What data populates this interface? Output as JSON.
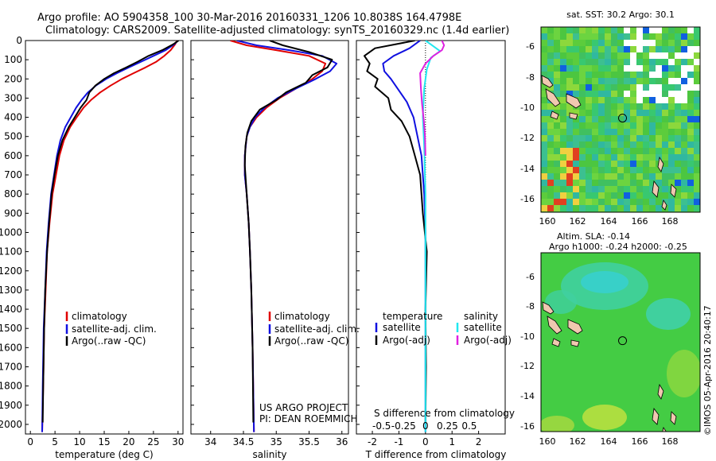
{
  "header": {
    "title_line1": "Argo profile: AO 5904358_100 30-Mar-2016 20160331_1206 10.8038S 164.4798E",
    "title_line2": "Climatology: CARS2009. Satellite-adjusted climatology: synTS_20160329.nc (1.4d earlier)"
  },
  "colors": {
    "climatology": "#e00000",
    "satellite": "#1010e0",
    "argo": "#000000",
    "sat_salinity": "#20e8f0",
    "argo_salinity": "#e020e0"
  },
  "chart_data": [
    {
      "id": "temperature_profile",
      "type": "line",
      "xlabel": "temperature (deg C)",
      "ylabel": "",
      "xlim": [
        -1,
        31
      ],
      "ylim": [
        0,
        2050
      ],
      "y_inverted": true,
      "xticks": [
        0,
        5,
        10,
        15,
        20,
        25,
        30
      ],
      "yticks": [
        0,
        100,
        200,
        300,
        400,
        500,
        600,
        700,
        800,
        900,
        1000,
        1100,
        1200,
        1300,
        1400,
        1500,
        1600,
        1700,
        1800,
        1900,
        2000
      ],
      "legend": {
        "position": "lower-center",
        "entries": [
          "climatology",
          "satellite-adj. clim.",
          "Argo(..raw -QC)"
        ]
      },
      "series": [
        {
          "name": "climatology",
          "color": "#e00000",
          "x": [
            29.8,
            29.4,
            28.5,
            27.2,
            25.6,
            23.4,
            21.0,
            18.6,
            16.3,
            14.2,
            12.3,
            10.8,
            9.4,
            8.1,
            6.8,
            5.9,
            5.2,
            4.5,
            3.9,
            3.4,
            3.1,
            2.8,
            2.6,
            2.4
          ],
          "y": [
            0,
            20,
            50,
            80,
            110,
            140,
            170,
            200,
            235,
            270,
            310,
            350,
            400,
            450,
            520,
            600,
            700,
            800,
            950,
            1100,
            1300,
            1500,
            1800,
            2040
          ]
        },
        {
          "name": "satellite-adj. clim.",
          "color": "#1010e0",
          "x": [
            30.0,
            29.2,
            27.5,
            25.0,
            22.5,
            20.0,
            17.6,
            15.4,
            13.3,
            11.7,
            10.4,
            9.3,
            8.2,
            7.1,
            6.1,
            5.4,
            4.8,
            4.2,
            3.7,
            3.3,
            3.0,
            2.7,
            2.5,
            2.4
          ],
          "y": [
            0,
            20,
            50,
            80,
            110,
            140,
            170,
            200,
            235,
            270,
            310,
            350,
            400,
            450,
            520,
            600,
            700,
            800,
            950,
            1100,
            1300,
            1500,
            1800,
            2040
          ]
        },
        {
          "name": "Argo(..raw -QC)",
          "color": "#000000",
          "x": [
            30.1,
            29.0,
            26.8,
            24.0,
            21.8,
            19.5,
            17.0,
            15.0,
            13.2,
            12.0,
            11.4,
            10.2,
            9.0,
            7.8,
            6.5,
            5.6,
            4.9,
            4.3,
            3.8,
            3.4,
            3.0,
            2.8,
            2.6,
            2.5
          ],
          "y": [
            0,
            20,
            50,
            80,
            110,
            140,
            170,
            200,
            235,
            270,
            310,
            350,
            400,
            450,
            520,
            600,
            700,
            800,
            950,
            1100,
            1300,
            1500,
            1800,
            1990
          ]
        }
      ]
    },
    {
      "id": "salinity_profile",
      "type": "line",
      "xlabel": "salinity",
      "xlim": [
        33.7,
        36.1
      ],
      "ylim": [
        0,
        2050
      ],
      "y_inverted": true,
      "xticks": [
        34,
        34.5,
        35,
        35.5,
        36
      ],
      "legend": {
        "position": "lower-center",
        "entries": [
          "climatology",
          "satellite-adj. clim.",
          "Argo(..raw -QC)"
        ]
      },
      "annotations": [
        "US ARGO PROJECT",
        "PI: DEAN ROEMMICH"
      ],
      "series": [
        {
          "name": "climatology",
          "color": "#e00000",
          "x": [
            34.3,
            34.55,
            35.0,
            35.5,
            35.75,
            35.7,
            35.55,
            35.3,
            35.05,
            34.85,
            34.7,
            34.6,
            34.55,
            34.52,
            34.52,
            34.55,
            34.58,
            34.6,
            34.62,
            34.64,
            34.66
          ],
          "y": [
            0,
            25,
            50,
            80,
            120,
            160,
            200,
            250,
            300,
            350,
            400,
            450,
            500,
            600,
            700,
            800,
            950,
            1100,
            1300,
            1600,
            2040
          ]
        },
        {
          "name": "satellite-adj. clim.",
          "color": "#1010e0",
          "x": [
            34.4,
            34.7,
            35.2,
            35.7,
            35.92,
            35.82,
            35.6,
            35.3,
            35.02,
            34.82,
            34.68,
            34.6,
            34.55,
            34.52,
            34.52,
            34.55,
            34.58,
            34.6,
            34.62,
            34.64,
            34.66
          ],
          "y": [
            0,
            25,
            50,
            80,
            120,
            160,
            200,
            250,
            300,
            350,
            400,
            450,
            500,
            600,
            700,
            800,
            950,
            1100,
            1300,
            1600,
            2040
          ]
        },
        {
          "name": "Argo(..raw -QC)",
          "color": "#000000",
          "x": [
            34.9,
            35.1,
            35.5,
            35.85,
            35.78,
            35.55,
            35.45,
            35.15,
            35.0,
            34.75,
            34.62,
            34.56,
            34.53,
            34.52,
            34.55,
            34.58,
            34.6,
            34.62,
            34.64,
            34.65
          ],
          "y": [
            0,
            25,
            60,
            100,
            140,
            180,
            220,
            270,
            310,
            360,
            420,
            480,
            550,
            650,
            800,
            950,
            1100,
            1300,
            1600,
            1990
          ]
        }
      ]
    },
    {
      "id": "difference_profile",
      "type": "line",
      "xlabel": "T difference from climatology",
      "xlabel2": "S difference from climatology",
      "xlim": [
        -2.6,
        3.0
      ],
      "ylim": [
        0,
        2050
      ],
      "y_inverted": true,
      "xticks": [
        -2,
        -1,
        0,
        1,
        2
      ],
      "xticks2": [
        -0.5,
        -0.25,
        0,
        0.25,
        0.5
      ],
      "xtick2_labels": [
        "-0.5",
        "-0.25",
        "0",
        "0.25",
        "0.5"
      ],
      "legend": {
        "position": "lower",
        "headers": [
          "temperature",
          "salinity"
        ],
        "entries": [
          "satellite",
          "Argo(-adj)",
          "satellite",
          "Argo(-adj)"
        ]
      },
      "series": [
        {
          "name": "temperature satellite",
          "color": "#1010e0",
          "x": [
            -0.2,
            -0.6,
            -1.2,
            -1.6,
            -1.55,
            -1.3,
            -1.0,
            -0.7,
            -0.45,
            -0.3,
            -0.15,
            -0.1,
            -0.05,
            0,
            0,
            0
          ],
          "y": [
            0,
            40,
            80,
            120,
            160,
            200,
            260,
            320,
            400,
            500,
            600,
            700,
            800,
            1000,
            1500,
            2040
          ]
        },
        {
          "name": "temperature Argo(-adj)",
          "color": "#000000",
          "x": [
            -0.4,
            -1.9,
            -2.3,
            -2.1,
            -2.2,
            -1.8,
            -1.9,
            -1.4,
            -1.3,
            -0.9,
            -0.6,
            -0.4,
            -0.2,
            -0.1,
            0.05,
            0,
            0.02,
            0
          ],
          "y": [
            0,
            40,
            80,
            120,
            160,
            200,
            240,
            300,
            360,
            420,
            500,
            600,
            700,
            900,
            1100,
            1400,
            1700,
            1990
          ]
        },
        {
          "name": "salinity satellite",
          "color": "#20e8f0",
          "x": [
            0.0,
            0.2,
            0.55,
            0.2,
            0.05,
            -0.05,
            -0.1,
            -0.05,
            0,
            0
          ],
          "y": [
            0,
            20,
            55,
            90,
            150,
            250,
            400,
            550,
            800,
            2040
          ]
        },
        {
          "name": "salinity Argo(-adj)",
          "color": "#e020e0",
          "x": [
            0.62,
            0.7,
            0.62,
            0.3,
            0.0,
            -0.2,
            -0.17,
            -0.13,
            -0.06,
            -0.02,
            0
          ],
          "y": [
            0,
            25,
            50,
            80,
            120,
            170,
            250,
            330,
            420,
            500,
            600
          ]
        }
      ]
    }
  ],
  "maps": {
    "sst": {
      "title": "sat. SST: 30.2  Argo: 30.1",
      "lat_labels": [
        "-6",
        "-8",
        "-10",
        "-12",
        "-14",
        "-16"
      ],
      "lon_labels": [
        "160",
        "162",
        "164",
        "166",
        "168"
      ]
    },
    "sla": {
      "title_line1": "Altim. SLA: -0.14",
      "title_line2": "Argo h1000: -0.24 h2000: -0.25",
      "lat_labels": [
        "-6",
        "-8",
        "-10",
        "-12",
        "-14",
        "-16"
      ],
      "lon_labels": [
        "160",
        "162",
        "164",
        "166",
        "168"
      ]
    }
  },
  "float_position": {
    "lon": 164.4798,
    "lat": -10.8038
  },
  "footer": {
    "imos_stamp": "©IMOS 05-Apr-2016 20:40:17"
  }
}
